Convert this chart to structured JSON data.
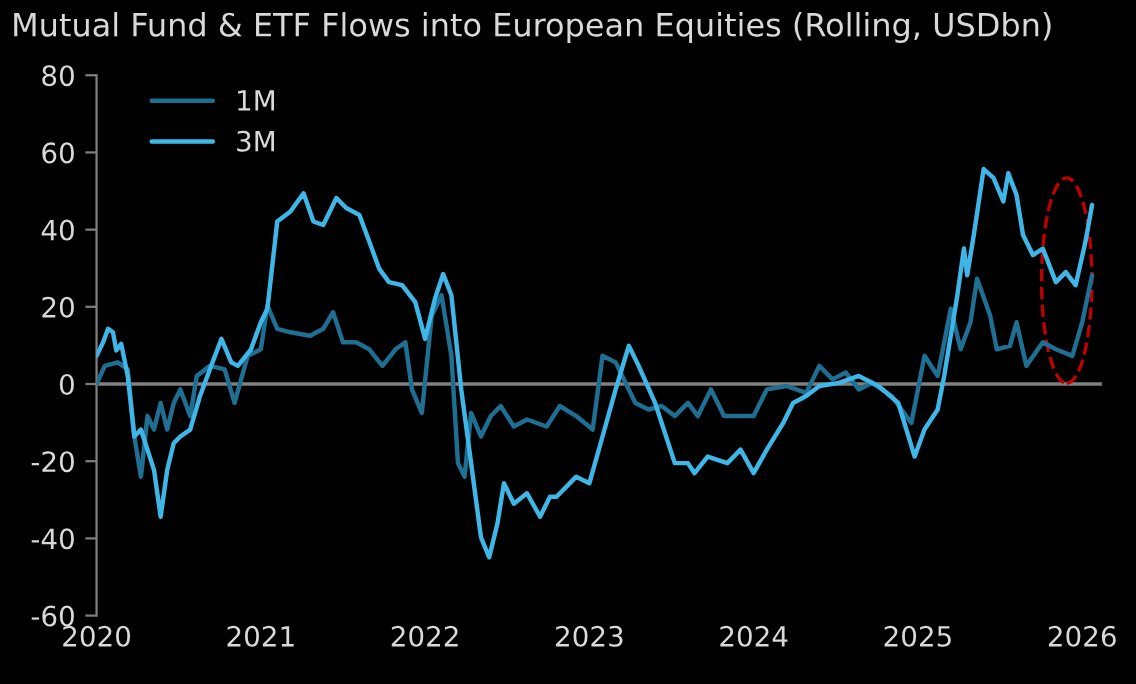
{
  "chart_data": {
    "type": "line",
    "title": "Mutual Fund & ETF Flows into European Equities (Rolling, USDbn)",
    "xlim": [
      2020,
      2026.12
    ],
    "xticks": [
      2020,
      2021,
      2022,
      2023,
      2024,
      2025,
      2026
    ],
    "ylim": [
      -60,
      80
    ],
    "yticks": [
      -60,
      -40,
      -20,
      0,
      20,
      40,
      60,
      80
    ],
    "grid": false,
    "legend": "top left",
    "marker": "none",
    "line_style": "solid",
    "ref_lines": [
      {
        "axis": "y",
        "value": 0,
        "color": "#808080"
      }
    ],
    "series": [
      {
        "name": "1M",
        "color": "#1f6f93",
        "x": [
          2020.0,
          2020.05,
          2020.13,
          2020.19,
          2020.23,
          2020.27,
          2020.31,
          2020.35,
          2020.39,
          2020.43,
          2020.47,
          2020.51,
          2020.57,
          2020.61,
          2020.69,
          2020.78,
          2020.84,
          2020.92,
          2021.0,
          2021.04,
          2021.1,
          2021.18,
          2021.3,
          2021.38,
          2021.44,
          2021.5,
          2021.58,
          2021.66,
          2021.74,
          2021.82,
          2021.88,
          2021.92,
          2021.98,
          2022.04,
          2022.1,
          2022.16,
          2022.2,
          2022.24,
          2022.28,
          2022.34,
          2022.4,
          2022.46,
          2022.54,
          2022.62,
          2022.74,
          2022.82,
          2022.92,
          2023.02,
          2023.08,
          2023.16,
          2023.2,
          2023.28,
          2023.36,
          2023.44,
          2023.52,
          2023.6,
          2023.66,
          2023.74,
          2023.82,
          2023.92,
          2024.0,
          2024.08,
          2024.2,
          2024.32,
          2024.4,
          2024.48,
          2024.56,
          2024.64,
          2024.72,
          2024.84,
          2024.96,
          2025.04,
          2025.12,
          2025.2,
          2025.26,
          2025.32,
          2025.36,
          2025.44,
          2025.48,
          2025.56,
          2025.6,
          2025.66,
          2025.76,
          2025.84,
          2025.94,
          2026.0,
          2026.06
        ],
        "values": [
          0.0,
          4.7,
          5.6,
          3.8,
          -13.6,
          -24.0,
          -8.3,
          -11.8,
          -4.9,
          -11.8,
          -4.9,
          -1.4,
          -8.3,
          2.1,
          4.7,
          3.8,
          -4.9,
          7.3,
          9.0,
          20.3,
          14.3,
          13.4,
          12.5,
          14.3,
          18.6,
          10.8,
          10.8,
          9.0,
          4.7,
          9.0,
          10.8,
          -1.4,
          -7.5,
          17.7,
          23.0,
          7.3,
          -20.5,
          -24.0,
          -7.5,
          -13.6,
          -8.3,
          -5.7,
          -11.0,
          -9.2,
          -11.0,
          -5.7,
          -8.3,
          -11.8,
          7.3,
          5.6,
          2.1,
          -4.9,
          -6.6,
          -5.7,
          -8.3,
          -4.9,
          -8.3,
          -1.4,
          -8.3,
          -8.3,
          -8.3,
          -1.4,
          -0.5,
          -2.3,
          4.7,
          1.2,
          3.0,
          -1.4,
          0.3,
          -3.1,
          -10.1,
          7.3,
          2.1,
          19.5,
          9.0,
          16.0,
          27.3,
          17.7,
          9.0,
          9.9,
          16.0,
          4.7,
          10.8,
          9.0,
          7.3,
          16.0,
          28.2
        ]
      },
      {
        "name": "3M",
        "color": "#3fb6e8",
        "x": [
          2020.0,
          2020.04,
          2020.07,
          2020.1,
          2020.12,
          2020.15,
          2020.19,
          2020.23,
          2020.27,
          2020.31,
          2020.35,
          2020.39,
          2020.43,
          2020.47,
          2020.51,
          2020.57,
          2020.63,
          2020.69,
          2020.76,
          2020.82,
          2020.86,
          2020.94,
          2021.0,
          2021.04,
          2021.1,
          2021.18,
          2021.26,
          2021.32,
          2021.38,
          2021.46,
          2021.52,
          2021.6,
          2021.66,
          2021.72,
          2021.78,
          2021.86,
          2021.94,
          2022.0,
          2022.06,
          2022.11,
          2022.16,
          2022.22,
          2022.28,
          2022.34,
          2022.39,
          2022.44,
          2022.48,
          2022.54,
          2022.62,
          2022.7,
          2022.76,
          2022.8,
          2022.92,
          2023.0,
          2023.08,
          2023.16,
          2023.24,
          2023.3,
          2023.4,
          2023.52,
          2023.6,
          2023.64,
          2023.72,
          2023.84,
          2023.92,
          2024.0,
          2024.08,
          2024.18,
          2024.24,
          2024.32,
          2024.4,
          2024.52,
          2024.64,
          2024.76,
          2024.88,
          2024.98,
          2025.04,
          2025.12,
          2025.16,
          2025.24,
          2025.28,
          2025.3,
          2025.34,
          2025.4,
          2025.46,
          2025.52,
          2025.55,
          2025.6,
          2025.64,
          2025.7,
          2025.76,
          2025.84,
          2025.9,
          2025.96,
          2026.02,
          2026.06
        ],
        "values": [
          7.3,
          10.8,
          14.3,
          13.4,
          8.7,
          10.4,
          2.1,
          -13.6,
          -11.8,
          -17.0,
          -22.3,
          -34.4,
          -22.3,
          -15.3,
          -13.6,
          -11.8,
          -3.1,
          3.8,
          11.7,
          5.6,
          4.7,
          9.0,
          16.0,
          19.5,
          42.1,
          44.7,
          49.4,
          42.1,
          41.2,
          48.2,
          45.6,
          43.8,
          36.9,
          29.9,
          26.4,
          25.6,
          21.2,
          11.7,
          22.1,
          28.5,
          23.0,
          -1.4,
          -20.5,
          -39.7,
          -44.9,
          -36.2,
          -25.7,
          -31.0,
          -28.3,
          -34.4,
          -29.2,
          -29.2,
          -24.0,
          -25.7,
          -13.6,
          -1.4,
          9.9,
          4.7,
          -4.9,
          -20.5,
          -20.5,
          -23.1,
          -18.8,
          -20.5,
          -17.0,
          -23.1,
          -17.0,
          -10.1,
          -4.9,
          -3.1,
          -0.5,
          0.3,
          2.1,
          -0.5,
          -4.9,
          -18.8,
          -11.8,
          -6.6,
          2.1,
          23.0,
          35.1,
          28.2,
          38.6,
          55.7,
          53.4,
          47.3,
          54.6,
          49.0,
          38.6,
          33.4,
          35.1,
          26.4,
          29.0,
          25.6,
          36.9,
          46.4
        ]
      }
    ]
  }
}
